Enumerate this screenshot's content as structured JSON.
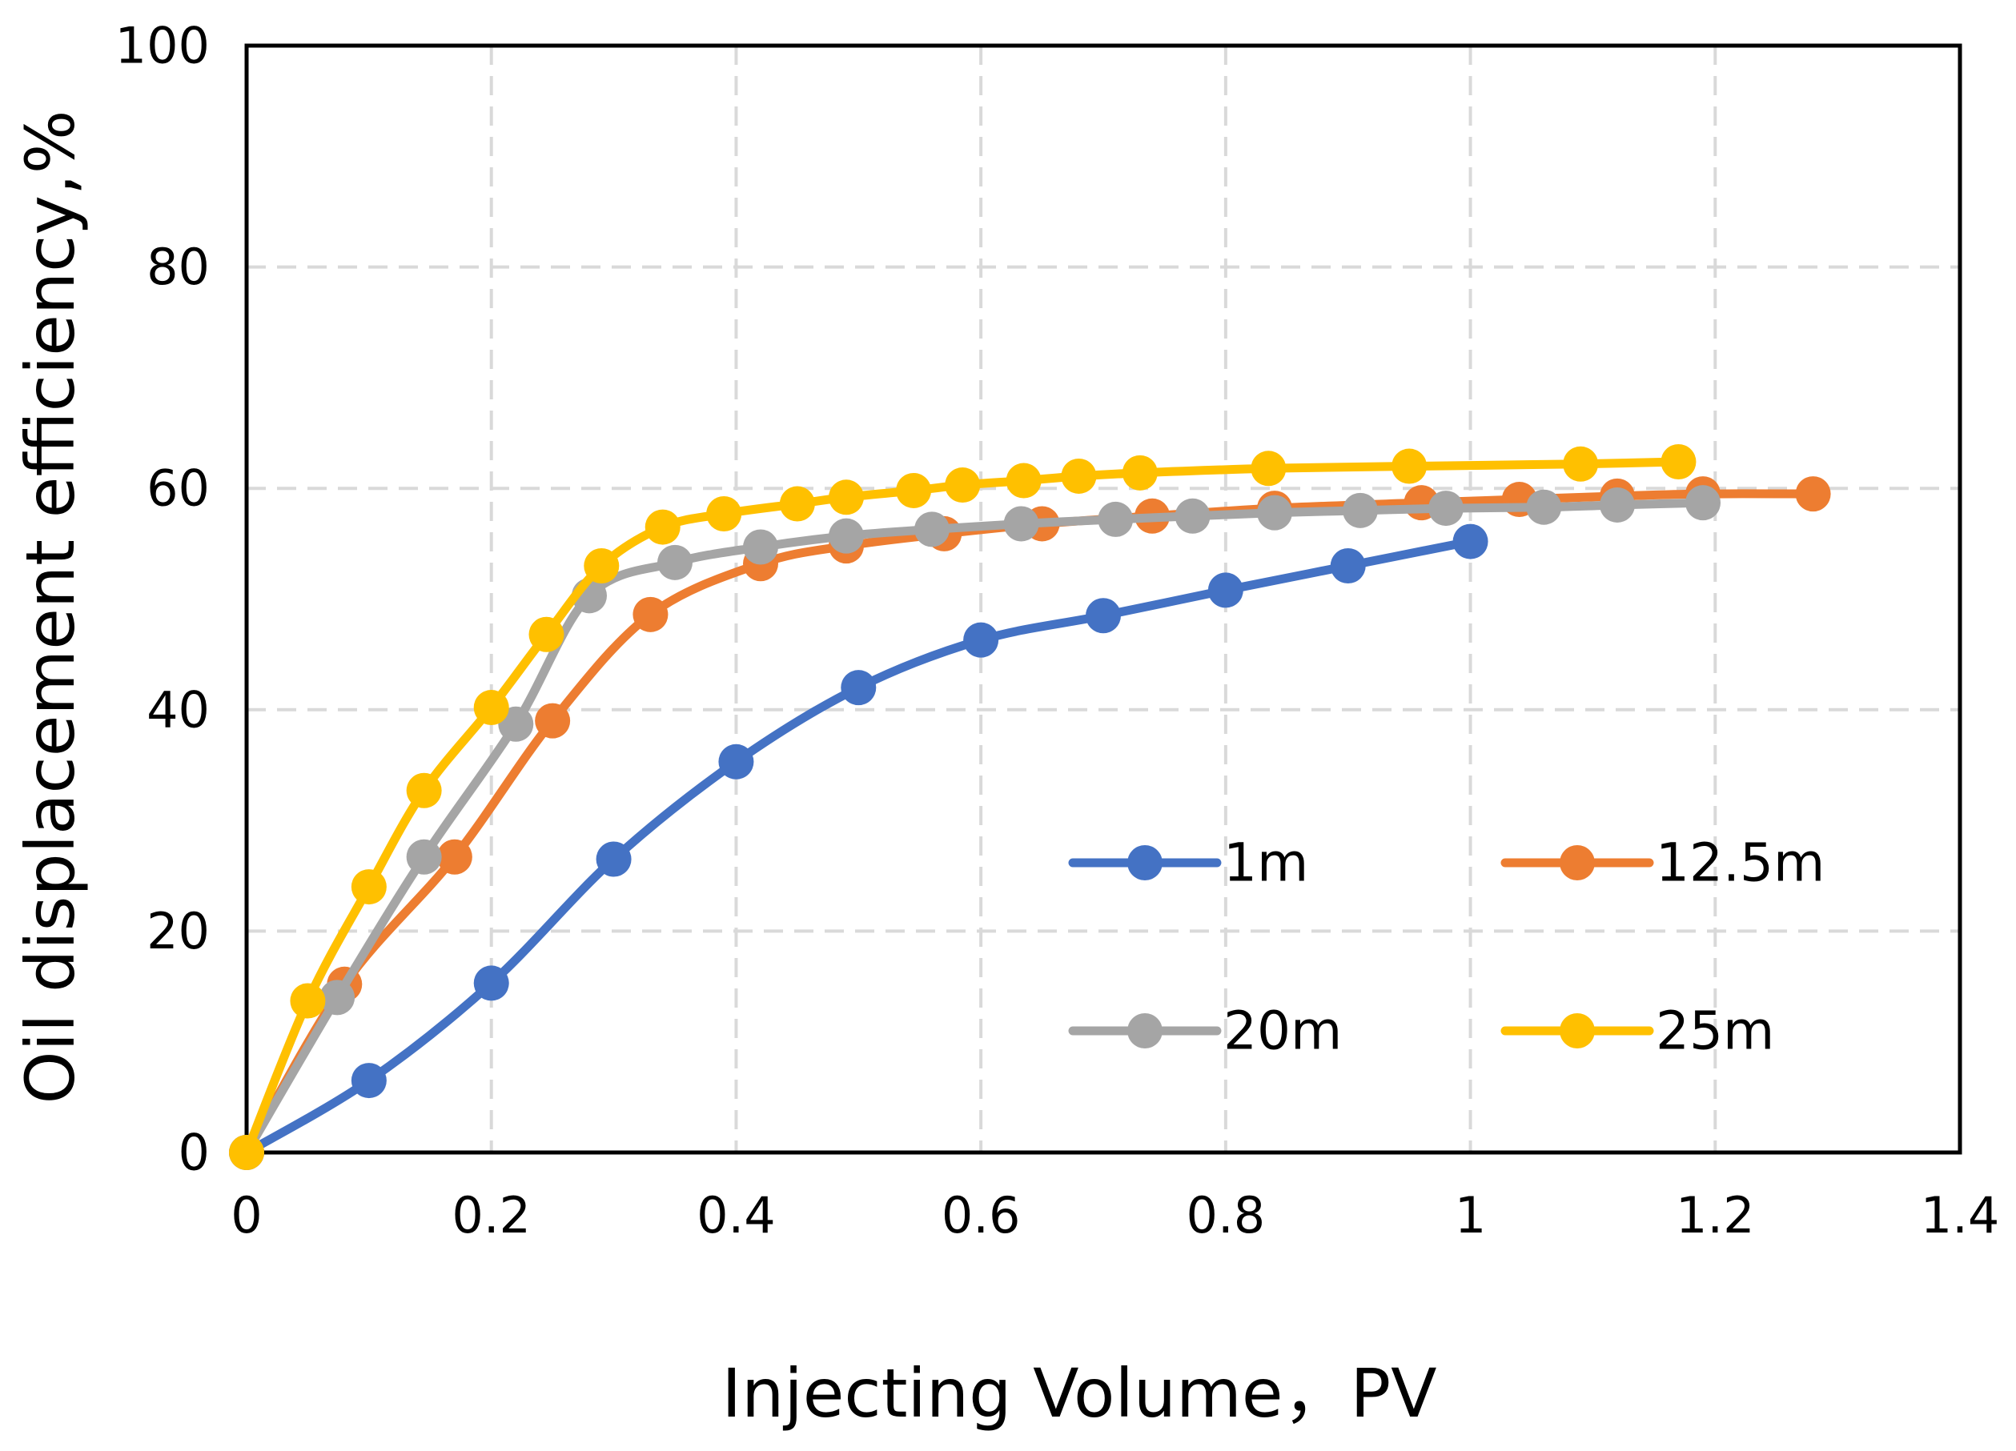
{
  "chart_data": {
    "type": "line",
    "title": "",
    "xlabel": "Injecting Volume，PV",
    "ylabel": "Oil displacement efficiency,%",
    "xlim": [
      0,
      1.4
    ],
    "ylim": [
      0,
      100
    ],
    "x_ticks": [
      0,
      0.2,
      0.4,
      0.6,
      0.8,
      1,
      1.2,
      1.4
    ],
    "x_tick_labels": [
      "0",
      "0.2",
      "0.4",
      "0.6",
      "0.8",
      "1",
      "1.2",
      "1.4"
    ],
    "y_ticks": [
      0,
      20,
      40,
      60,
      80,
      100
    ],
    "y_tick_labels": [
      "0",
      "20",
      "40",
      "60",
      "80",
      "100"
    ],
    "grid": true,
    "legend_position": "inside-bottom-right",
    "series": [
      {
        "name": "1m",
        "color": "#4472C4",
        "x": [
          0,
          0.1,
          0.2,
          0.3,
          0.4,
          0.5,
          0.6,
          0.7,
          0.8,
          0.9,
          1.0
        ],
        "y": [
          0,
          6.5,
          15.3,
          26.5,
          35.3,
          42,
          46.3,
          48.5,
          50.8,
          53,
          55.2
        ]
      },
      {
        "name": "12.5m",
        "color": "#ED7D31",
        "x": [
          0,
          0.08,
          0.17,
          0.25,
          0.33,
          0.42,
          0.49,
          0.57,
          0.65,
          0.74,
          0.84,
          0.96,
          1.04,
          1.12,
          1.19,
          1.28
        ],
        "y": [
          0,
          15.2,
          26.7,
          39,
          48.6,
          53.2,
          54.8,
          55.9,
          56.8,
          57.5,
          58.2,
          58.7,
          59,
          59.3,
          59.5,
          59.5
        ]
      },
      {
        "name": "20m",
        "color": "#A5A5A5",
        "x": [
          0,
          0.074,
          0.145,
          0.22,
          0.28,
          0.35,
          0.42,
          0.49,
          0.56,
          0.633,
          0.71,
          0.773,
          0.84,
          0.91,
          0.98,
          1.06,
          1.12,
          1.19
        ],
        "y": [
          0,
          14,
          26.7,
          38.7,
          50.3,
          53.3,
          54.7,
          55.7,
          56.3,
          56.8,
          57.2,
          57.5,
          57.8,
          58,
          58.2,
          58.3,
          58.5,
          58.7
        ]
      },
      {
        "name": "25m",
        "color": "#FFC000",
        "x": [
          0,
          0.05,
          0.1,
          0.145,
          0.2,
          0.245,
          0.29,
          0.34,
          0.39,
          0.45,
          0.49,
          0.545,
          0.585,
          0.635,
          0.68,
          0.73,
          0.835,
          0.95,
          1.09,
          1.17
        ],
        "y": [
          0,
          13.7,
          24,
          32.7,
          40.2,
          46.8,
          53,
          56.5,
          57.7,
          58.6,
          59.2,
          59.8,
          60.3,
          60.7,
          61.1,
          61.4,
          61.8,
          62,
          62.2,
          62.4
        ]
      }
    ]
  }
}
